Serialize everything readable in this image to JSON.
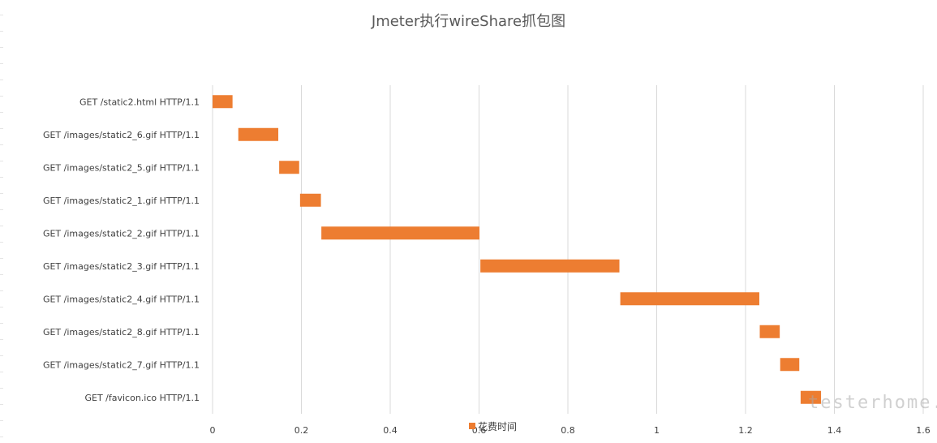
{
  "chart_data": {
    "type": "bar",
    "orientation": "horizontal-gantt",
    "title": "Jmeter执行wireShare抓包图",
    "categories": [
      "GET /static2.html HTTP/1.1",
      "GET /images/static2_6.gif HTTP/1.1",
      "GET /images/static2_5.gif HTTP/1.1",
      "GET /images/static2_1.gif HTTP/1.1",
      "GET /images/static2_2.gif HTTP/1.1",
      "GET /images/static2_3.gif HTTP/1.1",
      "GET /images/static2_4.gif HTTP/1.1",
      "GET /images/static2_8.gif HTTP/1.1",
      "GET /images/static2_7.gif HTTP/1.1",
      "GET /favicon.ico HTTP/1.1"
    ],
    "series": [
      {
        "name": "花费时间",
        "color": "#ED7D31",
        "start": [
          0.0,
          0.058,
          0.15,
          0.197,
          0.245,
          0.603,
          0.918,
          1.232,
          1.278,
          1.324
        ],
        "values": [
          0.045,
          0.09,
          0.045,
          0.047,
          0.356,
          0.313,
          0.313,
          0.045,
          0.043,
          0.046
        ]
      }
    ],
    "xlim": [
      0,
      1.6
    ],
    "xticks": [
      "0",
      "0.2",
      "0.4",
      "0.6",
      "0.8",
      "1",
      "1.2",
      "1.4",
      "1.6"
    ],
    "grid": true,
    "legend": "bottom"
  },
  "watermark": "testerhome.com"
}
